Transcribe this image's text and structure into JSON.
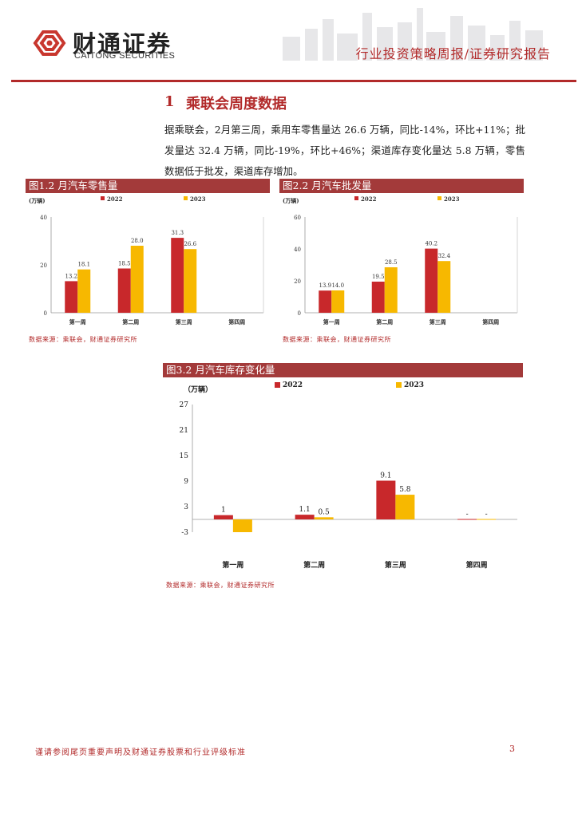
{
  "header": {
    "brand_cn": "财通证券",
    "brand_en": "CAITONG SECURITIES",
    "report_type": "行业投资策略周报/证券研究报告"
  },
  "section": {
    "number": "1",
    "title": "乘联会周度数据"
  },
  "paragraph": "据乘联会，2月第三周，乘用车零售量达 26.6 万辆，同比-14%，环比+11%；批发量达 32.4 万辆，同比-19%，环比+46%；渠道库存变化量达 5.8 万辆，零售数据低于批发，渠道库存增加。",
  "colors": {
    "series_2022": "#c8282b",
    "series_2023": "#f7b800",
    "accent": "#b22a2a"
  },
  "figures": [
    {
      "title": "图1.2 月汽车零售量",
      "source": "数据来源：乘联会，财通证券研究所"
    },
    {
      "title": "图2.2 月汽车批发量",
      "source": "数据来源：乘联会，财通证券研究所"
    },
    {
      "title": "图3.2 月汽车库存变化量",
      "source": "数据来源：乘联会，财通证券研究所"
    }
  ],
  "chart_data": [
    {
      "type": "bar",
      "ylabel": "(万辆)",
      "categories": [
        "第一周",
        "第二周",
        "第三周",
        "第四周"
      ],
      "ylim": [
        0,
        40
      ],
      "yticks": [
        0,
        20,
        40
      ],
      "series": [
        {
          "name": "2022",
          "values": [
            13.2,
            18.5,
            31.3,
            null
          ]
        },
        {
          "name": "2023",
          "values": [
            18.1,
            28.0,
            26.6,
            null
          ]
        }
      ],
      "legend": "top-left"
    },
    {
      "type": "bar",
      "ylabel": "(万辆)",
      "categories": [
        "第一周",
        "第二周",
        "第三周",
        "第四周"
      ],
      "ylim": [
        0,
        60
      ],
      "yticks": [
        0,
        20,
        40,
        60
      ],
      "series": [
        {
          "name": "2022",
          "values": [
            13.9,
            19.5,
            40.2,
            null
          ]
        },
        {
          "name": "2023",
          "values": [
            14.0,
            28.5,
            32.4,
            null
          ]
        }
      ],
      "legend": "top-left"
    },
    {
      "type": "bar",
      "ylabel": "（万辆）",
      "categories": [
        "第一周",
        "第二周",
        "第三周",
        "第四周"
      ],
      "ylim": [
        -3,
        27
      ],
      "yticks": [
        -3,
        3,
        9,
        15,
        21,
        27
      ],
      "series": [
        {
          "name": "2022",
          "values": [
            1,
            1.1,
            9.1,
            0
          ],
          "labels": [
            "1",
            "1.1",
            "9.1",
            "-"
          ]
        },
        {
          "name": "2023",
          "values": [
            -3,
            0.5,
            5.8,
            0
          ],
          "labels": [
            "",
            "0.5",
            "5.8",
            "-"
          ]
        }
      ],
      "legend": "top-center"
    }
  ],
  "footer": {
    "disclaimer": "谨请参阅尾页重要声明及财通证券股票和行业评级标准",
    "page": "3"
  }
}
